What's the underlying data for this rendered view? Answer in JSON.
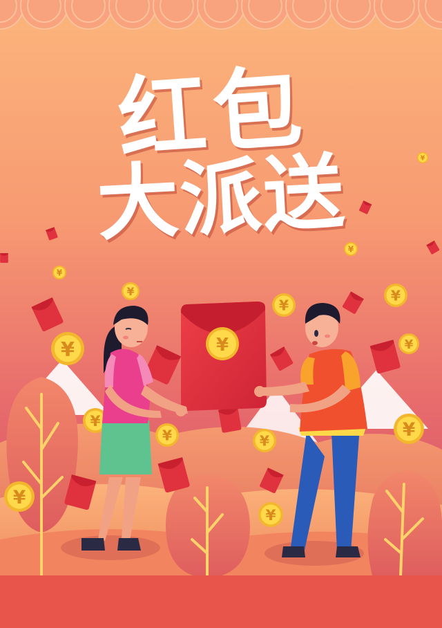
{
  "title": {
    "line1": "红包",
    "line2": "大派送"
  },
  "coin_symbol": "¥",
  "colors": {
    "sky_top": "#fbb07a",
    "sky_mid": "#f4846a",
    "sky_bottom": "#d2506a",
    "scallop": "#f9a27e",
    "envelope_red": "#e0313e",
    "coin_yellow": "#ffd84a",
    "bottom_band": "#e8554a"
  }
}
